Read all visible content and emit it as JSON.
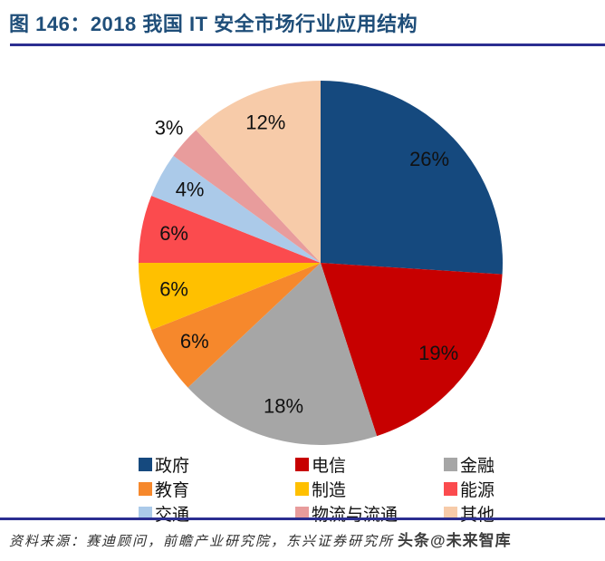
{
  "figure": {
    "title": "图 146：2018 我国 IT 安全市场行业应用结构"
  },
  "chart_data": {
    "type": "pie",
    "title": "2018 我国 IT 安全市场行业应用结构",
    "unit": "%",
    "direction": "clockwise",
    "start_angle_deg": 0,
    "legend_position": "bottom",
    "legend_columns": 3,
    "slices": [
      {
        "label": "政府",
        "value": 26,
        "color": "#15497E",
        "label_inside": true
      },
      {
        "label": "电信",
        "value": 19,
        "color": "#C70000",
        "label_inside": true
      },
      {
        "label": "金融",
        "value": 18,
        "color": "#A6A6A6",
        "label_inside": true
      },
      {
        "label": "教育",
        "value": 6,
        "color": "#F6882C",
        "label_inside": true
      },
      {
        "label": "制造",
        "value": 6,
        "color": "#FFC000",
        "label_inside": true
      },
      {
        "label": "能源",
        "value": 6,
        "color": "#FB4B4E",
        "label_inside": true
      },
      {
        "label": "交通",
        "value": 4,
        "color": "#ABCAE9",
        "label_inside": true
      },
      {
        "label": "物流与流通",
        "value": 3,
        "color": "#E89C9C",
        "label_inside": false
      },
      {
        "label": "其他",
        "value": 12,
        "color": "#F7CBA9",
        "label_inside": true
      }
    ]
  },
  "footer": {
    "source": "资料来源：赛迪顾问，前瞻产业研究院，东兴证券研究所",
    "watermark": "头条@未来智库"
  },
  "colors": {
    "title": "#1F4E79",
    "divider": "#2B2E91",
    "slice_label": "#111111"
  }
}
